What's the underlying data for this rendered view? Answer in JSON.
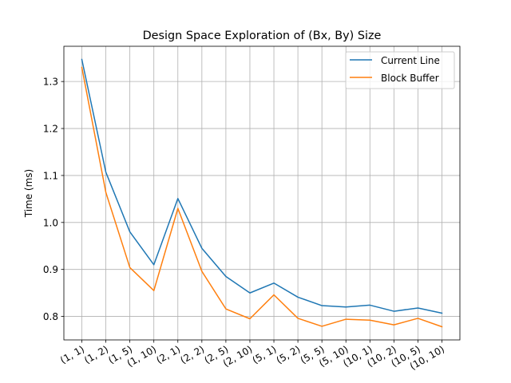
{
  "chart_data": {
    "type": "line",
    "title": "Design Space Exploration of (Bx, By) Size",
    "xlabel": "",
    "ylabel": "Time (ms)",
    "categories": [
      "(1, 1)",
      "(1, 2)",
      "(1, 5)",
      "(1, 10)",
      "(2, 1)",
      "(2, 2)",
      "(2, 5)",
      "(2, 10)",
      "(5, 1)",
      "(5, 2)",
      "(5, 5)",
      "(5, 10)",
      "(10, 1)",
      "(10, 2)",
      "(10, 5)",
      "(10, 10)"
    ],
    "ylim": [
      0.75,
      1.375
    ],
    "yticks": [
      0.8,
      0.9,
      1.0,
      1.1,
      1.2,
      1.3
    ],
    "ytick_labels": [
      "0.8",
      "0.9",
      "1.0",
      "1.1",
      "1.2",
      "1.3"
    ],
    "grid": true,
    "legend_position": "top-right",
    "series": [
      {
        "name": "Current Line",
        "color": "#1f77b4",
        "values": [
          1.347,
          1.107,
          0.98,
          0.91,
          1.051,
          0.945,
          0.885,
          0.85,
          0.871,
          0.841,
          0.823,
          0.82,
          0.824,
          0.811,
          0.818,
          0.807
        ]
      },
      {
        "name": "Block Buffer",
        "color": "#ff7f0e",
        "values": [
          1.33,
          1.064,
          0.904,
          0.855,
          1.03,
          0.896,
          0.816,
          0.795,
          0.846,
          0.796,
          0.779,
          0.794,
          0.792,
          0.782,
          0.796,
          0.778
        ]
      }
    ]
  }
}
